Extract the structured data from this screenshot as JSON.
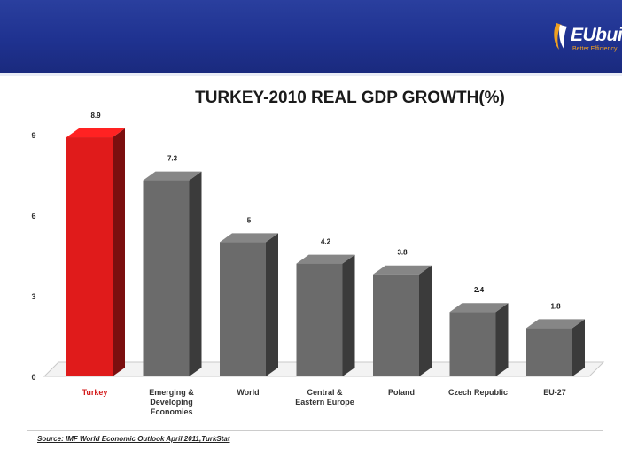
{
  "brand": {
    "logo_text": "EUbuild",
    "logo_subtext": "Better Efficiency",
    "banner_color": "#1f3290",
    "accent_color": "#f0a020"
  },
  "chart_data": {
    "type": "bar",
    "title": "TURKEY-2010 REAL GDP GROWTH(%)",
    "categories": [
      "Turkey",
      "Emerging & Developing Economies",
      "World",
      "Central & Eastern Europe",
      "Poland",
      "Czech Republic",
      "EU-27"
    ],
    "category_lines": [
      [
        "Turkey"
      ],
      [
        "Emerging &",
        "Developing",
        "Economies"
      ],
      [
        "World"
      ],
      [
        "Central &",
        "Eastern Europe"
      ],
      [
        "Poland"
      ],
      [
        "Czech Republic"
      ],
      [
        "EU-27"
      ]
    ],
    "values": [
      8.9,
      7.3,
      5,
      4.2,
      3.8,
      2.4,
      1.8
    ],
    "value_labels": [
      "8.9",
      "7.3",
      "5",
      "4.2",
      "3.8",
      "2.4",
      "1.8"
    ],
    "bar_colors": [
      "#e01b1b",
      "#6b6b6b",
      "#6b6b6b",
      "#6b6b6b",
      "#6b6b6b",
      "#6b6b6b",
      "#6b6b6b"
    ],
    "highlight_label_color": "#d41c1c",
    "ylim": [
      0,
      9
    ],
    "yticks": [
      0,
      3,
      6,
      9
    ],
    "grid": false,
    "legend": "none",
    "style": "3d-bars"
  },
  "source": "Source: IMF World Economic Outlook April 2011,TurkStat"
}
